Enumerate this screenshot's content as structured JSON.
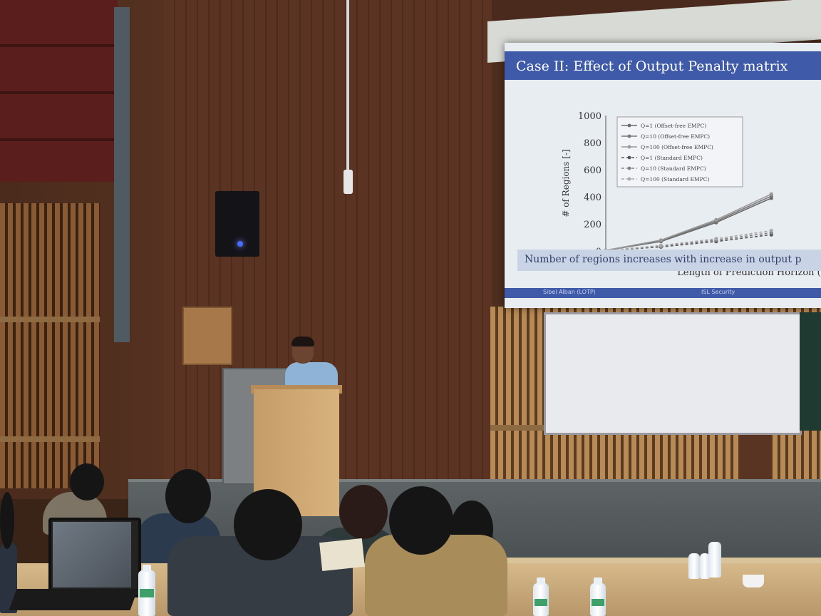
{
  "slide": {
    "title": "Case II: Effect of Output Penalty matrix",
    "caption": "Number of regions increases with increase in output p",
    "footer_left": "Sibel Alban  (LOTP)",
    "footer_right": "ISL Security"
  },
  "chart_data": {
    "type": "line",
    "xlabel": "Length of Prediction Horizon (",
    "ylabel": "# of Regions [-]",
    "x": [
      2,
      3,
      4,
      5
    ],
    "xlim": [
      2,
      5.9
    ],
    "ylim": [
      0,
      1000
    ],
    "yticks": [
      0,
      200,
      400,
      600,
      800,
      1000
    ],
    "legend_position": "top-right",
    "series": [
      {
        "name": "Q=1 (Offset-free EMPC)",
        "values": [
          5,
          70,
          210,
          390
        ],
        "color": "#6b6b6b"
      },
      {
        "name": "Q=10 (Offset-free EMPC)",
        "values": [
          5,
          75,
          220,
          405
        ],
        "color": "#777777"
      },
      {
        "name": "Q=100 (Offset-free EMPC)",
        "values": [
          5,
          80,
          230,
          420
        ],
        "color": "#999999"
      },
      {
        "name": "Q=1 (Standard EMPC)",
        "values": [
          3,
          30,
          70,
          120
        ],
        "color": "#555555"
      },
      {
        "name": "Q=10 (Standard EMPC)",
        "values": [
          3,
          35,
          80,
          135
        ],
        "color": "#808080"
      },
      {
        "name": "Q=100 (Standard EMPC)",
        "values": [
          3,
          40,
          90,
          150
        ],
        "color": "#a8a8a8"
      }
    ]
  },
  "scene": {
    "wall_color": "#4e2e1f",
    "screen_header_color": "#3f5aa8"
  }
}
